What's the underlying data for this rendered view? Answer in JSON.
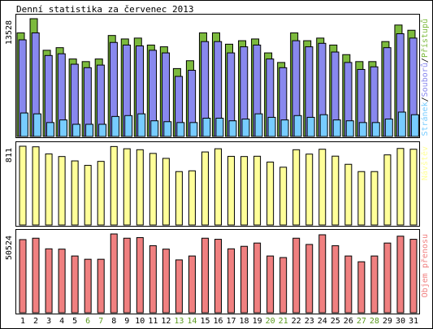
{
  "chart_data": {
    "type": "bar",
    "title": "Denní statistika za červenec 2013",
    "days": [
      "1",
      "2",
      "3",
      "4",
      "5",
      "6",
      "7",
      "8",
      "9",
      "10",
      "11",
      "12",
      "13",
      "14",
      "15",
      "16",
      "17",
      "18",
      "19",
      "20",
      "21",
      "22",
      "23",
      "24",
      "25",
      "26",
      "27",
      "28",
      "29",
      "30",
      "31"
    ],
    "weekend_days": [
      "6",
      "7",
      "13",
      "14",
      "20",
      "21",
      "27",
      "28"
    ],
    "panels": [
      {
        "name": "traffic",
        "ymax_label": "13528",
        "ymax": 13528,
        "legend": [
          "Stránek",
          "Souborů",
          "Přístupů"
        ],
        "legend_separator": "/",
        "series": [
          {
            "key": "pristupu",
            "color": "#7cba3d",
            "values": [
              11900,
              13528,
              9900,
              10200,
              8900,
              8600,
              8900,
              11600,
              11200,
              11300,
              10500,
              10300,
              7800,
              8700,
              11900,
              11900,
              10600,
              11000,
              11200,
              9600,
              8500,
              11900,
              11000,
              11300,
              10500,
              9400,
              8600,
              8600,
              10900,
              12800,
              12200
            ]
          },
          {
            "key": "souboru",
            "color": "#8888ee",
            "values": [
              11100,
              11900,
              9300,
              9500,
              8300,
              7900,
              8200,
              10800,
              10500,
              10400,
              9900,
              9600,
              6900,
              7600,
              10900,
              10900,
              9600,
              10300,
              10500,
              8900,
              7900,
              11000,
              10300,
              10700,
              9700,
              8500,
              7700,
              8000,
              10200,
              11800,
              11300
            ]
          },
          {
            "key": "stranek",
            "color": "#77ccff",
            "values": [
              2700,
              2600,
              1600,
              1900,
              1400,
              1400,
              1400,
              2300,
              2400,
              2600,
              1800,
              1700,
              1600,
              1600,
              2100,
              2100,
              1800,
              2000,
              2600,
              2200,
              1900,
              2400,
              2200,
              2500,
              1900,
              1800,
              1600,
              1600,
              2000,
              2800,
              2500
            ]
          }
        ]
      },
      {
        "name": "navstev",
        "ymax_label": "811",
        "ymax": 811,
        "legend": [
          "Návštěv"
        ],
        "series": [
          {
            "key": "navstev",
            "color": "#ffff99",
            "values": [
              811,
              805,
              732,
              705,
              660,
              614,
              655,
              808,
              785,
              775,
              737,
              686,
              550,
              558,
              752,
              785,
              707,
              705,
              708,
              648,
              595,
              775,
              730,
              780,
              709,
              625,
              550,
              550,
              722,
              788,
              780
            ]
          }
        ]
      },
      {
        "name": "objem",
        "ymax_label": "50524",
        "ymax": 50524,
        "legend": [
          "Objem přenosu"
        ],
        "series": [
          {
            "key": "objem",
            "color": "#f08080",
            "values": [
              46900,
              47800,
              41000,
              40800,
              36400,
              34300,
              34300,
              50524,
              47800,
              48200,
              43000,
              40800,
              33900,
              36400,
              47800,
              47100,
              41000,
              42600,
              44700,
              36400,
              35400,
              47800,
              43800,
              50000,
              43000,
              36400,
              32700,
              36400,
              44700,
              49100,
              47100
            ]
          }
        ]
      }
    ]
  }
}
